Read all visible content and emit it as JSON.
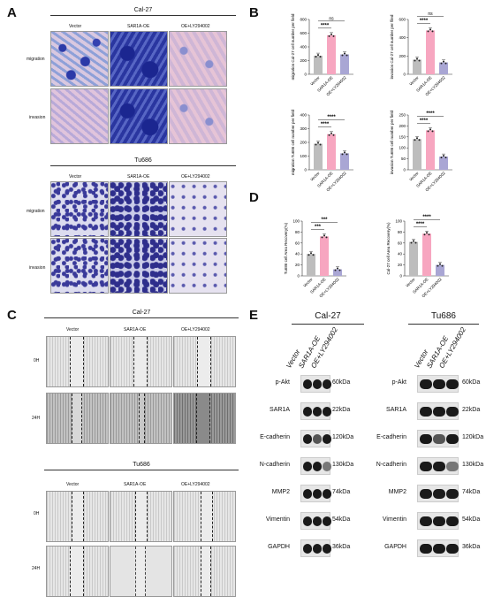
{
  "panels": {
    "A": "A",
    "B": "B",
    "C": "C",
    "D": "D",
    "E": "E"
  },
  "panelA": {
    "cal_title": "Cal-27",
    "tu_title": "Tu686",
    "cols": [
      "Vector",
      "SAR1A-OE",
      "OE+LY294002"
    ],
    "rows": [
      "migration",
      "invasion"
    ]
  },
  "panelC": {
    "cal_title": "Cal-27",
    "tu_title": "Tu686",
    "cols": [
      "Vector",
      "SAR1A-OE",
      "OE+LY294002"
    ],
    "rows": [
      "0H",
      "24H"
    ]
  },
  "panelE": {
    "cal_title": "Cal-27",
    "tu_title": "Tu686",
    "lanes": [
      "Vector",
      "SAR1A-OE",
      "OE+LY294002"
    ],
    "proteins": [
      {
        "name": "p-Akt",
        "kda": "60kDa"
      },
      {
        "name": "SAR1A",
        "kda": "22kDa"
      },
      {
        "name": "E-cadherin",
        "kda": "120kDa"
      },
      {
        "name": "N-cadherin",
        "kda": "130kDa"
      },
      {
        "name": "MMP2",
        "kda": "74kDa"
      },
      {
        "name": "Vimentin",
        "kda": "54kDa"
      },
      {
        "name": "GAPDH",
        "kda": "36kDa"
      }
    ]
  },
  "colors": {
    "vector": "#bdbdbd",
    "oe": "#f7a6c0",
    "ly": "#a9a6d4"
  },
  "chart_data": [
    {
      "id": "B1",
      "type": "bar",
      "ylabel": "migration Cal-27 cell number per field",
      "categories": [
        "Vector",
        "SAR1A-OE",
        "OE+LY294002"
      ],
      "values": [
        270,
        570,
        290
      ],
      "ylim": [
        0,
        800
      ],
      "yticks": [
        "0",
        "200",
        "400",
        "600",
        "800"
      ],
      "sig": [
        "****",
        "ns"
      ]
    },
    {
      "id": "B2",
      "type": "bar",
      "ylabel": "invasion Cal-27 cell number per filed",
      "categories": [
        "Vector",
        "SAR1A-OE",
        "OE+LY294002"
      ],
      "values": [
        160,
        480,
        130
      ],
      "ylim": [
        0,
        600
      ],
      "yticks": [
        "0",
        "200",
        "400",
        "600"
      ],
      "sig": [
        "****",
        "ns"
      ]
    },
    {
      "id": "B3",
      "type": "bar",
      "ylabel": "migration Tu686 cell number per field",
      "categories": [
        "Vector",
        "SAR1A-OE",
        "OE+LY294002"
      ],
      "values": [
        190,
        260,
        120
      ],
      "ylim": [
        0,
        400
      ],
      "yticks": [
        "0",
        "100",
        "200",
        "300",
        "400"
      ],
      "sig": [
        "****",
        "****"
      ]
    },
    {
      "id": "B4",
      "type": "bar",
      "ylabel": "invasion Tu686 cell number per field",
      "categories": [
        "Vector",
        "SAR1A-OE",
        "OE+LY294002"
      ],
      "values": [
        140,
        180,
        60
      ],
      "ylim": [
        0,
        250
      ],
      "yticks": [
        "0",
        "50",
        "100",
        "150",
        "200",
        "250"
      ],
      "sig": [
        "****",
        "****"
      ]
    },
    {
      "id": "D1",
      "type": "bar",
      "ylabel": "Tu686 cell Area Recovery(%)",
      "categories": [
        "Vector",
        "SAR1A-OE",
        "OE+LY294002"
      ],
      "values": [
        40,
        72,
        12
      ],
      "ylim": [
        0,
        100
      ],
      "yticks": [
        "0",
        "20",
        "40",
        "60",
        "80",
        "100"
      ],
      "sig": [
        "***",
        "***"
      ]
    },
    {
      "id": "D2",
      "type": "bar",
      "ylabel": "Cal-27 cell Area Recovery(%)",
      "categories": [
        "Vector",
        "SAR1A-OE",
        "OE+LY294002"
      ],
      "values": [
        62,
        77,
        20
      ],
      "ylim": [
        0,
        100
      ],
      "yticks": [
        "0",
        "20",
        "40",
        "60",
        "80",
        "100"
      ],
      "sig": [
        "****",
        "****"
      ]
    }
  ]
}
